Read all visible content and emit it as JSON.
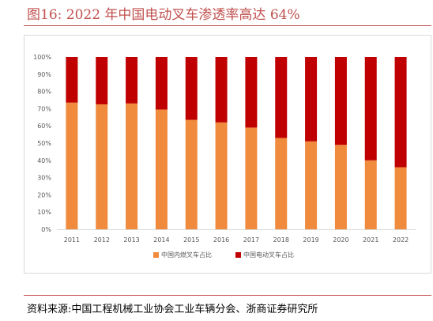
{
  "figure": {
    "title": "图16:   2022 年中国电动叉车渗透率高达 64%",
    "source": "资料来源:中国工程机械工业协会工业车辆分会、浙商证券研究所"
  },
  "colors": {
    "ice": "#f08a3c",
    "electric": "#c00000",
    "grid": "#d9d9d9",
    "axis_text": "#595959",
    "title": "#c0504d"
  },
  "chart_data": {
    "type": "bar",
    "stacked": true,
    "categories": [
      "2011",
      "2012",
      "2013",
      "2014",
      "2015",
      "2016",
      "2017",
      "2018",
      "2019",
      "2020",
      "2021",
      "2022"
    ],
    "series": [
      {
        "name": "中国内燃叉车占比",
        "values": [
          73.5,
          72.5,
          73,
          69.5,
          63.5,
          62,
          59,
          53,
          51,
          49,
          40,
          36
        ],
        "color": "#f08a3c"
      },
      {
        "name": "中国电动叉车占比",
        "values": [
          26.5,
          27.5,
          27,
          30.5,
          36.5,
          38,
          41,
          47,
          49,
          51,
          60,
          64
        ],
        "color": "#c00000"
      }
    ],
    "yticks": [
      "0%",
      "10%",
      "20%",
      "30%",
      "40%",
      "50%",
      "60%",
      "70%",
      "80%",
      "90%",
      "100%"
    ],
    "ylim": [
      0,
      100
    ],
    "legend_position": "bottom",
    "grid": false
  }
}
